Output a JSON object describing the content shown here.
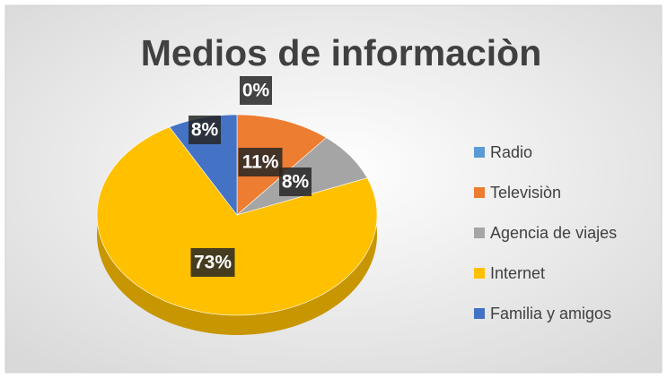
{
  "chart_data": {
    "type": "pie",
    "title": "Medios de informaciòn",
    "categories": [
      "Radio",
      "Televisiòn",
      "Agencia de viajes",
      "Internet",
      "Familia y amigos"
    ],
    "values": [
      0,
      11,
      8,
      73,
      8
    ],
    "value_labels": [
      "0%",
      "11%",
      "8%",
      "73%",
      "8%"
    ],
    "colors": [
      "#5b9bd5",
      "#ed7d31",
      "#a5a5a5",
      "#ffc000",
      "#4472c4"
    ],
    "legend": "right"
  }
}
